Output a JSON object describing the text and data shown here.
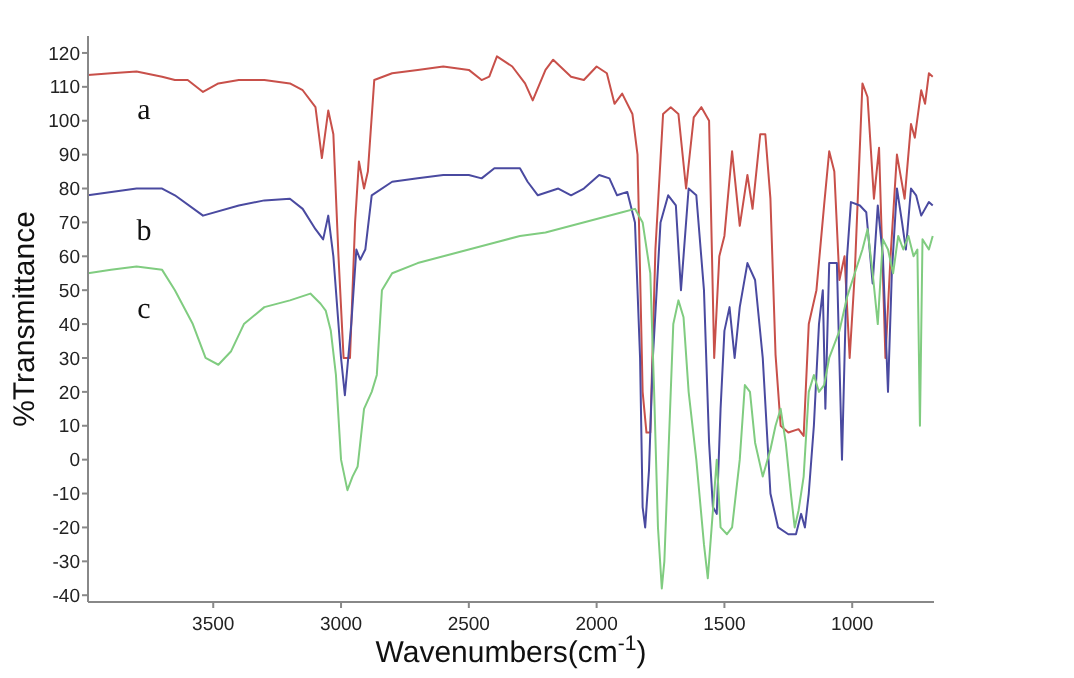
{
  "chart_data": {
    "type": "line",
    "xlabel": "Wavenumbers(cm$^{-1}$)",
    "ylabel": "%Transmittance",
    "xlim": [
      3990,
      680
    ],
    "xticks": [
      3500,
      3000,
      2500,
      2000,
      1500,
      1000
    ],
    "ylim": [
      -42,
      125
    ],
    "yticks": [
      -40,
      -30,
      -20,
      -10,
      0,
      10,
      20,
      30,
      40,
      50,
      60,
      70,
      80,
      90,
      100,
      110,
      120
    ],
    "grid": false,
    "marker": "none",
    "line_style": "solid",
    "series": [
      {
        "name": "a",
        "color": "#c8504a",
        "x": [
          3990,
          3900,
          3800,
          3700,
          3650,
          3600,
          3540,
          3480,
          3400,
          3300,
          3200,
          3150,
          3100,
          3075,
          3050,
          3030,
          3010,
          2990,
          2965,
          2945,
          2930,
          2910,
          2895,
          2870,
          2800,
          2700,
          2600,
          2500,
          2450,
          2420,
          2390,
          2330,
          2280,
          2250,
          2200,
          2170,
          2100,
          2050,
          2000,
          1960,
          1930,
          1900,
          1860,
          1840,
          1820,
          1805,
          1790,
          1770,
          1740,
          1710,
          1680,
          1650,
          1620,
          1590,
          1560,
          1540,
          1520,
          1500,
          1470,
          1440,
          1410,
          1390,
          1360,
          1340,
          1320,
          1300,
          1280,
          1250,
          1210,
          1190,
          1170,
          1140,
          1110,
          1090,
          1070,
          1050,
          1030,
          1010,
          990,
          960,
          940,
          915,
          895,
          870,
          850,
          825,
          795,
          770,
          755,
          730,
          715,
          700,
          685
        ],
        "values": [
          113.5,
          114,
          114.5,
          113,
          112,
          112,
          108.5,
          111,
          112,
          112,
          111,
          109,
          104,
          89,
          103,
          96,
          60,
          30,
          30,
          70,
          88,
          80,
          85,
          112,
          114,
          115,
          116,
          115,
          112,
          113,
          119,
          116,
          111,
          106,
          115,
          118,
          113,
          112,
          116,
          114,
          105,
          108,
          102,
          90,
          20,
          8,
          8,
          62,
          102,
          104,
          102,
          80,
          101,
          104,
          100,
          30,
          60,
          66,
          91,
          69,
          84,
          74,
          96,
          96,
          77,
          31,
          10,
          8,
          9,
          7,
          40,
          50,
          75,
          91,
          85,
          53,
          60,
          30,
          55,
          111,
          107,
          77,
          92,
          30,
          60,
          90,
          77,
          99,
          95,
          109,
          105,
          114,
          113
        ]
      },
      {
        "name": "b",
        "color": "#4a4aa0",
        "x": [
          3990,
          3800,
          3700,
          3650,
          3540,
          3400,
          3300,
          3200,
          3150,
          3100,
          3070,
          3050,
          3030,
          3000,
          2985,
          2960,
          2940,
          2925,
          2905,
          2880,
          2800,
          2700,
          2600,
          2500,
          2450,
          2400,
          2300,
          2270,
          2230,
          2150,
          2100,
          2050,
          1990,
          1950,
          1920,
          1880,
          1850,
          1830,
          1820,
          1810,
          1795,
          1780,
          1750,
          1720,
          1690,
          1670,
          1640,
          1610,
          1580,
          1560,
          1545,
          1530,
          1515,
          1500,
          1480,
          1460,
          1440,
          1410,
          1380,
          1350,
          1320,
          1290,
          1250,
          1220,
          1200,
          1185,
          1170,
          1150,
          1130,
          1115,
          1105,
          1090,
          1060,
          1040,
          1020,
          1005,
          970,
          945,
          920,
          900,
          880,
          860,
          845,
          825,
          805,
          790,
          770,
          750,
          730,
          700,
          685
        ],
        "values": [
          78,
          80,
          80,
          78,
          72,
          75,
          76.5,
          77,
          74,
          68,
          65,
          72,
          60,
          30,
          19,
          40,
          62,
          59,
          62,
          78,
          82,
          83,
          84,
          84,
          83,
          86,
          86,
          82,
          78,
          80,
          78,
          80,
          84,
          83,
          78,
          79,
          70,
          30,
          -14,
          -20,
          -3,
          30,
          70,
          78,
          75,
          50,
          80,
          78,
          50,
          5,
          -14,
          -16,
          15,
          38,
          45,
          30,
          45,
          58,
          53,
          30,
          -10,
          -20,
          -22,
          -22,
          -16,
          -20,
          -10,
          10,
          40,
          50,
          15,
          58,
          58,
          0,
          60,
          76,
          75,
          73,
          52,
          75,
          60,
          20,
          55,
          80,
          70,
          62,
          80,
          78,
          72,
          76,
          75
        ]
      },
      {
        "name": "c",
        "color": "#80cc80",
        "x": [
          3990,
          3900,
          3800,
          3700,
          3650,
          3580,
          3530,
          3480,
          3430,
          3380,
          3300,
          3200,
          3120,
          3080,
          3060,
          3040,
          3020,
          3000,
          2975,
          2955,
          2935,
          2910,
          2880,
          2860,
          2840,
          2800,
          2700,
          2600,
          2500,
          2400,
          2300,
          2200,
          2100,
          2000,
          1900,
          1850,
          1820,
          1790,
          1775,
          1760,
          1745,
          1735,
          1720,
          1700,
          1680,
          1660,
          1640,
          1610,
          1580,
          1565,
          1550,
          1530,
          1515,
          1490,
          1470,
          1440,
          1420,
          1400,
          1380,
          1350,
          1320,
          1300,
          1280,
          1260,
          1240,
          1225,
          1210,
          1190,
          1170,
          1150,
          1130,
          1110,
          1090,
          1050,
          1020,
          990,
          960,
          940,
          920,
          900,
          880,
          860,
          840,
          820,
          800,
          780,
          760,
          745,
          735,
          725,
          700,
          685
        ],
        "values": [
          55,
          56,
          57,
          56,
          50,
          40,
          30,
          28,
          32,
          40,
          45,
          47,
          49,
          46,
          44,
          38,
          25,
          0,
          -9,
          -5,
          -2,
          15,
          20,
          25,
          50,
          55,
          58,
          60,
          62,
          64,
          66,
          67,
          69,
          71,
          73,
          74,
          70,
          55,
          20,
          -20,
          -38,
          -30,
          0,
          40,
          47,
          42,
          20,
          0,
          -25,
          -35,
          -20,
          0,
          -20,
          -22,
          -20,
          0,
          22,
          20,
          5,
          -5,
          3,
          10,
          15,
          5,
          -10,
          -20,
          -15,
          -5,
          20,
          25,
          20,
          22,
          30,
          38,
          48,
          55,
          62,
          68,
          55,
          40,
          65,
          62,
          55,
          66,
          62,
          66,
          60,
          62,
          10,
          65,
          62,
          66
        ]
      }
    ]
  }
}
